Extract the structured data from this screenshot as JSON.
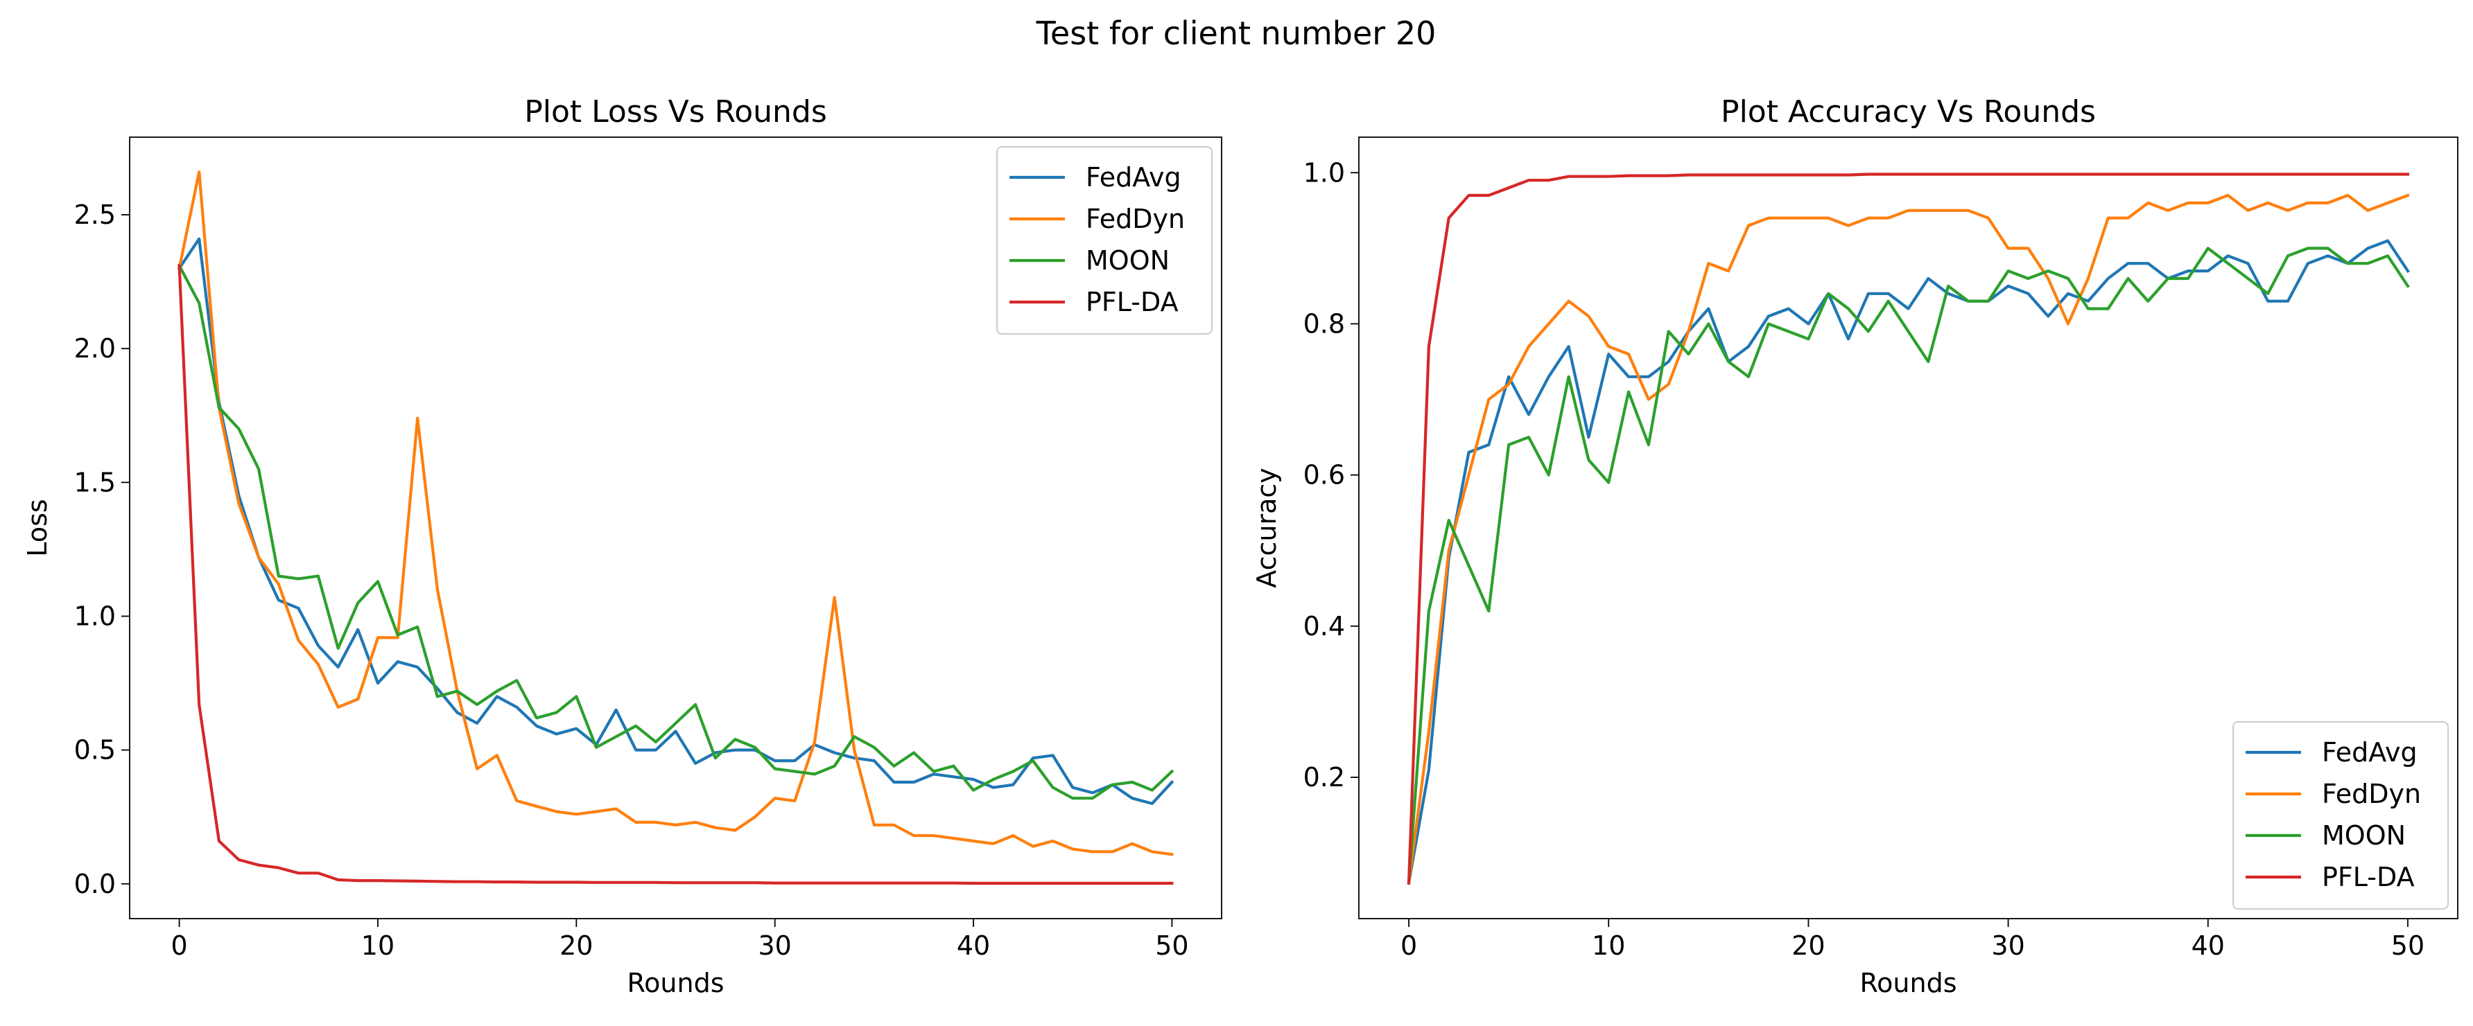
{
  "suptitle": "Test for client number 20",
  "colors": {
    "FedAvg": "#1f77b4",
    "FedDyn": "#ff7f0e",
    "MOON": "#2ca02c",
    "PFL-DA": "#d62728"
  },
  "chart_data": [
    {
      "type": "line",
      "title": "Plot Loss Vs Rounds",
      "xlabel": "Rounds",
      "ylabel": "Loss",
      "xlim": [
        -2.5,
        52.5
      ],
      "ylim": [
        -0.13,
        2.79
      ],
      "xticks": [
        0,
        10,
        20,
        30,
        40,
        50
      ],
      "yticks": [
        0.0,
        0.5,
        1.0,
        1.5,
        2.0,
        2.5
      ],
      "ytick_labels": [
        "0.0",
        "0.5",
        "1.0",
        "1.5",
        "2.0",
        "2.5"
      ],
      "grid": false,
      "legend": "upper right",
      "x": [
        0,
        1,
        2,
        3,
        4,
        5,
        6,
        7,
        8,
        9,
        10,
        11,
        12,
        13,
        14,
        15,
        16,
        17,
        18,
        19,
        20,
        21,
        22,
        23,
        24,
        25,
        26,
        27,
        28,
        29,
        30,
        31,
        32,
        33,
        34,
        35,
        36,
        37,
        38,
        39,
        40,
        41,
        42,
        43,
        44,
        45,
        46,
        47,
        48,
        49,
        50
      ],
      "series": [
        {
          "name": "FedAvg",
          "values": [
            2.3,
            2.41,
            1.8,
            1.45,
            1.22,
            1.06,
            1.03,
            0.89,
            0.81,
            0.95,
            0.75,
            0.83,
            0.81,
            0.73,
            0.64,
            0.6,
            0.7,
            0.66,
            0.59,
            0.56,
            0.58,
            0.52,
            0.65,
            0.5,
            0.5,
            0.57,
            0.45,
            0.49,
            0.5,
            0.5,
            0.46,
            0.46,
            0.52,
            0.49,
            0.47,
            0.46,
            0.38,
            0.38,
            0.41,
            0.4,
            0.39,
            0.36,
            0.37,
            0.47,
            0.48,
            0.36,
            0.34,
            0.37,
            0.32,
            0.3,
            0.38
          ]
        },
        {
          "name": "FedDyn",
          "values": [
            2.3,
            2.66,
            1.78,
            1.42,
            1.22,
            1.12,
            0.91,
            0.82,
            0.66,
            0.69,
            0.92,
            0.92,
            1.74,
            1.1,
            0.72,
            0.43,
            0.48,
            0.31,
            0.29,
            0.27,
            0.26,
            0.27,
            0.28,
            0.23,
            0.23,
            0.22,
            0.23,
            0.21,
            0.2,
            0.25,
            0.32,
            0.31,
            0.53,
            1.07,
            0.5,
            0.22,
            0.22,
            0.18,
            0.18,
            0.17,
            0.16,
            0.15,
            0.18,
            0.14,
            0.16,
            0.13,
            0.12,
            0.12,
            0.15,
            0.12,
            0.11
          ]
        },
        {
          "name": "MOON",
          "values": [
            2.31,
            2.17,
            1.78,
            1.7,
            1.55,
            1.15,
            1.14,
            1.15,
            0.88,
            1.05,
            1.13,
            0.93,
            0.96,
            0.7,
            0.72,
            0.67,
            0.72,
            0.76,
            0.62,
            0.64,
            0.7,
            0.51,
            0.55,
            0.59,
            0.53,
            0.6,
            0.67,
            0.47,
            0.54,
            0.51,
            0.43,
            0.42,
            0.41,
            0.44,
            0.55,
            0.51,
            0.44,
            0.49,
            0.42,
            0.44,
            0.35,
            0.39,
            0.42,
            0.46,
            0.36,
            0.32,
            0.32,
            0.37,
            0.38,
            0.35,
            0.42
          ]
        },
        {
          "name": "PFL-DA",
          "values": [
            2.31,
            0.67,
            0.16,
            0.09,
            0.07,
            0.06,
            0.04,
            0.04,
            0.015,
            0.012,
            0.012,
            0.011,
            0.01,
            0.009,
            0.008,
            0.008,
            0.007,
            0.007,
            0.006,
            0.006,
            0.006,
            0.005,
            0.005,
            0.005,
            0.005,
            0.004,
            0.004,
            0.004,
            0.004,
            0.004,
            0.003,
            0.003,
            0.003,
            0.003,
            0.003,
            0.003,
            0.003,
            0.003,
            0.003,
            0.003,
            0.002,
            0.002,
            0.002,
            0.002,
            0.002,
            0.002,
            0.002,
            0.002,
            0.002,
            0.002,
            0.002
          ]
        }
      ]
    },
    {
      "type": "line",
      "title": "Plot Accuracy Vs Rounds",
      "xlabel": "Rounds",
      "ylabel": "Accuracy",
      "xlim": [
        -2.5,
        52.5
      ],
      "ylim": [
        0.013,
        1.047
      ],
      "xticks": [
        0,
        10,
        20,
        30,
        40,
        50
      ],
      "yticks": [
        0.2,
        0.4,
        0.6,
        0.8,
        1.0
      ],
      "ytick_labels": [
        "0.2",
        "0.4",
        "0.6",
        "0.8",
        "1.0"
      ],
      "grid": false,
      "legend": "lower right",
      "x": [
        0,
        1,
        2,
        3,
        4,
        5,
        6,
        7,
        8,
        9,
        10,
        11,
        12,
        13,
        14,
        15,
        16,
        17,
        18,
        19,
        20,
        21,
        22,
        23,
        24,
        25,
        26,
        27,
        28,
        29,
        30,
        31,
        32,
        33,
        34,
        35,
        36,
        37,
        38,
        39,
        40,
        41,
        42,
        43,
        44,
        45,
        46,
        47,
        48,
        49,
        50
      ],
      "series": [
        {
          "name": "FedAvg",
          "values": [
            0.06,
            0.21,
            0.49,
            0.63,
            0.64,
            0.73,
            0.68,
            0.73,
            0.77,
            0.65,
            0.76,
            0.73,
            0.73,
            0.75,
            0.79,
            0.82,
            0.75,
            0.77,
            0.81,
            0.82,
            0.8,
            0.84,
            0.78,
            0.84,
            0.84,
            0.82,
            0.86,
            0.84,
            0.83,
            0.83,
            0.85,
            0.84,
            0.81,
            0.84,
            0.83,
            0.86,
            0.88,
            0.88,
            0.86,
            0.87,
            0.87,
            0.89,
            0.88,
            0.83,
            0.83,
            0.88,
            0.89,
            0.88,
            0.9,
            0.91,
            0.87
          ]
        },
        {
          "name": "FedDyn",
          "values": [
            0.06,
            0.26,
            0.5,
            0.6,
            0.7,
            0.72,
            0.77,
            0.8,
            0.83,
            0.81,
            0.77,
            0.76,
            0.7,
            0.72,
            0.79,
            0.88,
            0.87,
            0.93,
            0.94,
            0.94,
            0.94,
            0.94,
            0.93,
            0.94,
            0.94,
            0.95,
            0.95,
            0.95,
            0.95,
            0.94,
            0.9,
            0.9,
            0.86,
            0.8,
            0.86,
            0.94,
            0.94,
            0.96,
            0.95,
            0.96,
            0.96,
            0.97,
            0.95,
            0.96,
            0.95,
            0.96,
            0.96,
            0.97,
            0.95,
            0.96,
            0.97
          ]
        },
        {
          "name": "MOON",
          "values": [
            0.06,
            0.42,
            0.54,
            0.48,
            0.42,
            0.64,
            0.65,
            0.6,
            0.73,
            0.62,
            0.59,
            0.71,
            0.64,
            0.79,
            0.76,
            0.8,
            0.75,
            0.73,
            0.8,
            0.79,
            0.78,
            0.84,
            0.82,
            0.79,
            0.83,
            0.79,
            0.75,
            0.85,
            0.83,
            0.83,
            0.87,
            0.86,
            0.87,
            0.86,
            0.82,
            0.82,
            0.86,
            0.83,
            0.86,
            0.86,
            0.9,
            0.88,
            0.86,
            0.84,
            0.89,
            0.9,
            0.9,
            0.88,
            0.88,
            0.89,
            0.85
          ]
        },
        {
          "name": "PFL-DA",
          "values": [
            0.06,
            0.77,
            0.94,
            0.97,
            0.97,
            0.98,
            0.99,
            0.99,
            0.995,
            0.995,
            0.995,
            0.996,
            0.996,
            0.996,
            0.997,
            0.997,
            0.997,
            0.997,
            0.997,
            0.997,
            0.997,
            0.997,
            0.997,
            0.998,
            0.998,
            0.998,
            0.998,
            0.998,
            0.998,
            0.998,
            0.998,
            0.998,
            0.998,
            0.998,
            0.998,
            0.998,
            0.998,
            0.998,
            0.998,
            0.998,
            0.998,
            0.998,
            0.998,
            0.998,
            0.998,
            0.998,
            0.998,
            0.998,
            0.998,
            0.998,
            0.998
          ]
        }
      ]
    }
  ]
}
